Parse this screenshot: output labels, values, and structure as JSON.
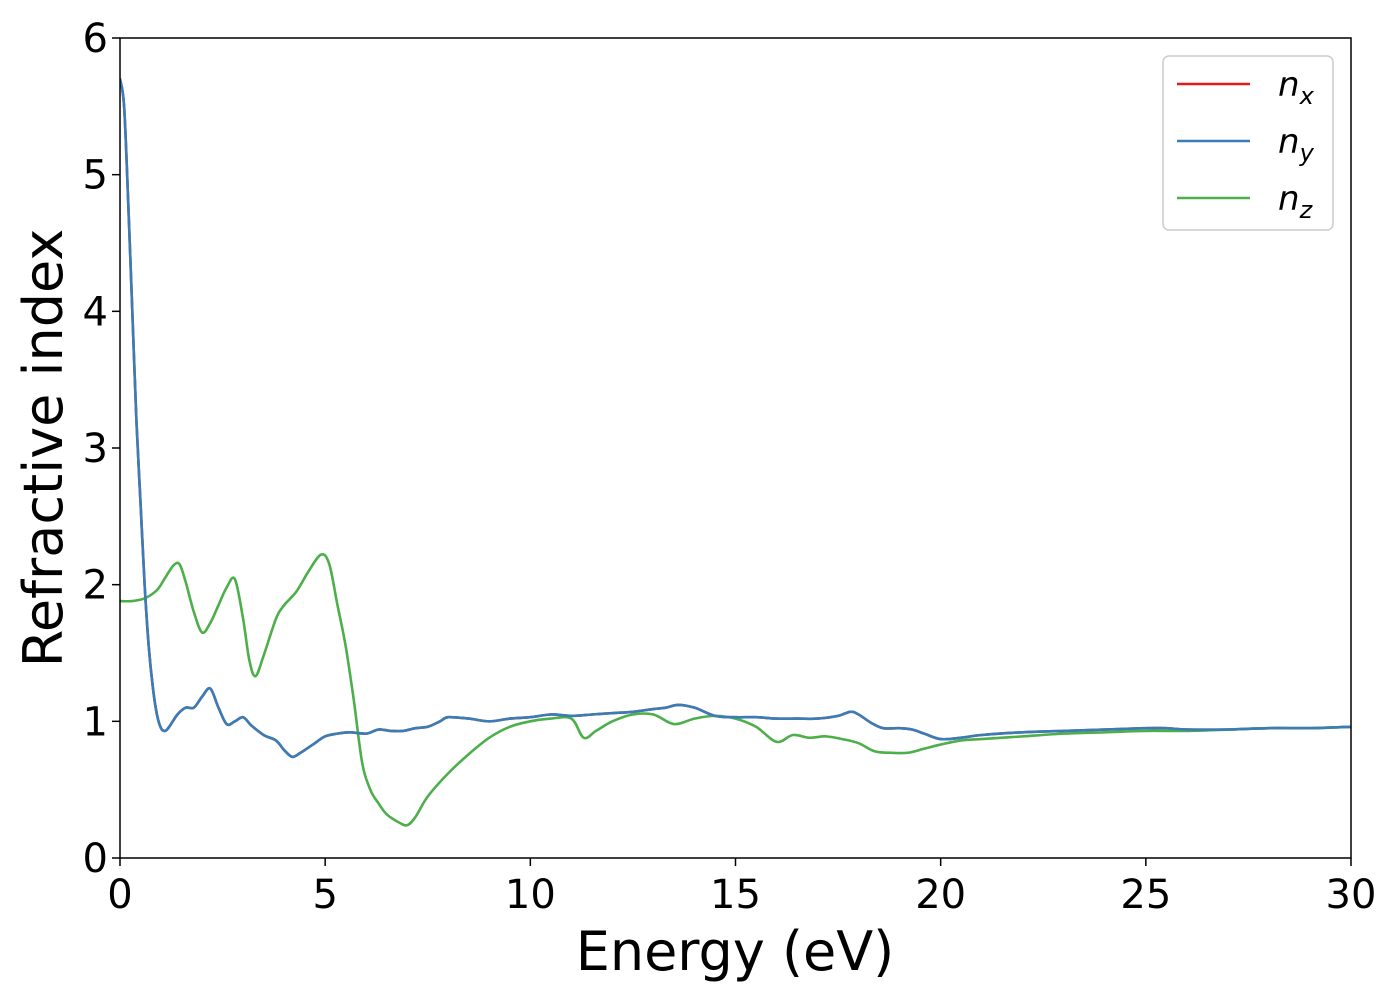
{
  "chart_data": {
    "type": "line",
    "xlabel": "Energy (eV)",
    "ylabel": "Refractive index",
    "xlim": [
      0,
      30
    ],
    "ylim": [
      0,
      6
    ],
    "xticks": [
      0,
      5,
      10,
      15,
      20,
      25,
      30
    ],
    "yticks": [
      0,
      1,
      2,
      3,
      4,
      5,
      6
    ],
    "grid": false,
    "legend_position": "top-right",
    "series": [
      {
        "name": "n_x",
        "label_base": "n",
        "label_sub": "x",
        "color": "#e41a1c",
        "x": [
          0.0,
          0.1,
          0.2,
          0.3,
          0.4,
          0.5,
          0.6,
          0.7,
          0.8,
          0.9,
          1.0,
          1.1,
          1.2,
          1.4,
          1.6,
          1.8,
          2.0,
          2.2,
          2.4,
          2.6,
          2.8,
          3.0,
          3.2,
          3.5,
          3.8,
          4.0,
          4.2,
          4.4,
          4.7,
          5.0,
          5.3,
          5.6,
          6.0,
          6.3,
          6.6,
          6.9,
          7.2,
          7.5,
          7.8,
          8.0,
          8.5,
          9.0,
          9.5,
          10.0,
          10.5,
          11.0,
          11.5,
          12.0,
          12.5,
          13.0,
          13.3,
          13.6,
          14.0,
          14.5,
          15.0,
          15.5,
          16.0,
          16.5,
          17.0,
          17.5,
          17.8,
          18.0,
          18.3,
          18.6,
          19.0,
          19.3,
          19.6,
          20.0,
          20.5,
          21.0,
          22.0,
          23.0,
          24.0,
          25.0,
          25.5,
          26.0,
          27.0,
          28.0,
          29.0,
          30.0
        ],
        "y": [
          5.7,
          5.5,
          4.8,
          4.0,
          3.2,
          2.6,
          2.0,
          1.55,
          1.25,
          1.05,
          0.95,
          0.93,
          0.96,
          1.05,
          1.1,
          1.1,
          1.18,
          1.24,
          1.1,
          0.98,
          1.0,
          1.03,
          0.97,
          0.9,
          0.86,
          0.79,
          0.74,
          0.77,
          0.83,
          0.89,
          0.91,
          0.92,
          0.91,
          0.94,
          0.93,
          0.93,
          0.95,
          0.96,
          1.0,
          1.03,
          1.02,
          1.0,
          1.02,
          1.03,
          1.05,
          1.04,
          1.05,
          1.06,
          1.07,
          1.09,
          1.1,
          1.12,
          1.1,
          1.04,
          1.03,
          1.03,
          1.02,
          1.02,
          1.02,
          1.04,
          1.07,
          1.05,
          0.99,
          0.95,
          0.95,
          0.94,
          0.91,
          0.87,
          0.88,
          0.9,
          0.92,
          0.93,
          0.94,
          0.95,
          0.95,
          0.94,
          0.94,
          0.95,
          0.95,
          0.96
        ]
      },
      {
        "name": "n_y",
        "label_base": "n",
        "label_sub": "y",
        "color": "#377eb8",
        "x": [
          0.0,
          0.1,
          0.2,
          0.3,
          0.4,
          0.5,
          0.6,
          0.7,
          0.8,
          0.9,
          1.0,
          1.1,
          1.2,
          1.4,
          1.6,
          1.8,
          2.0,
          2.2,
          2.4,
          2.6,
          2.8,
          3.0,
          3.2,
          3.5,
          3.8,
          4.0,
          4.2,
          4.4,
          4.7,
          5.0,
          5.3,
          5.6,
          6.0,
          6.3,
          6.6,
          6.9,
          7.2,
          7.5,
          7.8,
          8.0,
          8.5,
          9.0,
          9.5,
          10.0,
          10.5,
          11.0,
          11.5,
          12.0,
          12.5,
          13.0,
          13.3,
          13.6,
          14.0,
          14.5,
          15.0,
          15.5,
          16.0,
          16.5,
          17.0,
          17.5,
          17.8,
          18.0,
          18.3,
          18.6,
          19.0,
          19.3,
          19.6,
          20.0,
          20.5,
          21.0,
          22.0,
          23.0,
          24.0,
          25.0,
          25.5,
          26.0,
          27.0,
          28.0,
          29.0,
          30.0
        ],
        "y": [
          5.7,
          5.5,
          4.8,
          4.0,
          3.2,
          2.6,
          2.0,
          1.55,
          1.25,
          1.05,
          0.95,
          0.93,
          0.96,
          1.05,
          1.1,
          1.1,
          1.18,
          1.24,
          1.1,
          0.98,
          1.0,
          1.03,
          0.97,
          0.9,
          0.86,
          0.79,
          0.74,
          0.77,
          0.83,
          0.89,
          0.91,
          0.92,
          0.91,
          0.94,
          0.93,
          0.93,
          0.95,
          0.96,
          1.0,
          1.03,
          1.02,
          1.0,
          1.02,
          1.03,
          1.05,
          1.04,
          1.05,
          1.06,
          1.07,
          1.09,
          1.1,
          1.12,
          1.1,
          1.04,
          1.03,
          1.03,
          1.02,
          1.02,
          1.02,
          1.04,
          1.07,
          1.05,
          0.99,
          0.95,
          0.95,
          0.94,
          0.91,
          0.87,
          0.88,
          0.9,
          0.92,
          0.93,
          0.94,
          0.95,
          0.95,
          0.94,
          0.94,
          0.95,
          0.95,
          0.96
        ]
      },
      {
        "name": "n_z",
        "label_base": "n",
        "label_sub": "z",
        "color": "#4daf4a",
        "x": [
          0.0,
          0.3,
          0.6,
          0.9,
          1.1,
          1.3,
          1.45,
          1.6,
          1.8,
          2.0,
          2.2,
          2.4,
          2.6,
          2.8,
          3.0,
          3.15,
          3.3,
          3.5,
          3.8,
          4.0,
          4.3,
          4.6,
          4.9,
          5.1,
          5.3,
          5.5,
          5.7,
          5.9,
          6.1,
          6.3,
          6.5,
          6.8,
          7.0,
          7.2,
          7.5,
          8.0,
          8.5,
          9.0,
          9.5,
          10.0,
          10.5,
          11.0,
          11.3,
          11.6,
          12.0,
          12.5,
          13.0,
          13.5,
          14.0,
          14.5,
          15.0,
          15.5,
          16.0,
          16.4,
          16.8,
          17.2,
          17.6,
          18.0,
          18.4,
          18.8,
          19.2,
          19.6,
          20.0,
          20.5,
          21.0,
          22.0,
          23.0,
          24.0,
          25.0,
          26.0,
          27.0,
          28.0,
          29.0,
          30.0
        ],
        "y": [
          1.88,
          1.88,
          1.9,
          1.96,
          2.05,
          2.14,
          2.15,
          2.02,
          1.8,
          1.65,
          1.72,
          1.85,
          1.98,
          2.04,
          1.75,
          1.45,
          1.33,
          1.48,
          1.75,
          1.85,
          1.95,
          2.1,
          2.22,
          2.15,
          1.85,
          1.55,
          1.15,
          0.7,
          0.5,
          0.4,
          0.32,
          0.26,
          0.24,
          0.3,
          0.45,
          0.62,
          0.76,
          0.88,
          0.96,
          1.0,
          1.02,
          1.02,
          0.88,
          0.93,
          1.0,
          1.05,
          1.05,
          0.98,
          1.02,
          1.04,
          1.02,
          0.96,
          0.85,
          0.9,
          0.88,
          0.89,
          0.87,
          0.84,
          0.78,
          0.77,
          0.77,
          0.8,
          0.83,
          0.86,
          0.87,
          0.89,
          0.91,
          0.92,
          0.93,
          0.93,
          0.94,
          0.95,
          0.95,
          0.96
        ]
      }
    ]
  }
}
